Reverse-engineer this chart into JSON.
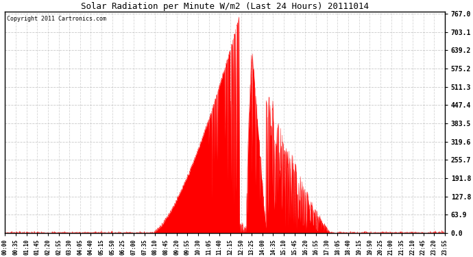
{
  "title": "Solar Radiation per Minute W/m2 (Last 24 Hours) 20111014",
  "copyright": "Copyright 2011 Cartronics.com",
  "yticks": [
    0.0,
    63.9,
    127.8,
    191.8,
    255.7,
    319.6,
    383.5,
    447.4,
    511.3,
    575.2,
    639.2,
    703.1,
    767.0
  ],
  "ymax": 767.0,
  "ymin": 0.0,
  "fill_color": "#FF0000",
  "line_color": "#FF0000",
  "bg_color": "#FFFFFF",
  "grid_color": "#BBBBBB",
  "dashed_line_color": "#FF0000",
  "xtick_labels": [
    "00:00",
    "00:35",
    "01:10",
    "01:45",
    "02:20",
    "02:55",
    "03:30",
    "04:05",
    "04:40",
    "05:15",
    "05:50",
    "06:25",
    "07:00",
    "07:35",
    "08:10",
    "08:45",
    "09:20",
    "09:55",
    "10:30",
    "11:05",
    "11:40",
    "12:15",
    "12:50",
    "13:25",
    "14:00",
    "14:35",
    "15:10",
    "15:45",
    "16:20",
    "16:55",
    "17:30",
    "18:05",
    "18:40",
    "19:15",
    "19:50",
    "20:25",
    "21:00",
    "21:35",
    "22:10",
    "22:45",
    "23:20",
    "23:55"
  ],
  "num_points": 1440,
  "rise_minute": 480,
  "set_minute": 1065,
  "peak_minute": 770,
  "peak_value": 767.0
}
